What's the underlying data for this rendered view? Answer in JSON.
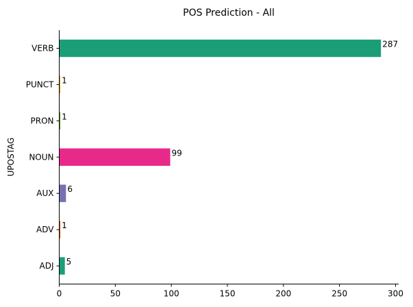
{
  "chart_data": {
    "type": "bar",
    "orientation": "horizontal",
    "title": "POS Prediction - All",
    "xlabel": "",
    "ylabel": "UPOSTAG",
    "categories": [
      "ADJ",
      "ADV",
      "AUX",
      "NOUN",
      "PRON",
      "PUNCT",
      "VERB"
    ],
    "values": [
      5,
      1,
      6,
      99,
      1,
      1,
      287
    ],
    "bar_colors": [
      "#1b9e77",
      "#d95f02",
      "#7570b3",
      "#e7298a",
      "#66a61e",
      "#e6ab02",
      "#1b9e77"
    ],
    "data_labels": [
      "5",
      "1",
      "6",
      "99",
      "1",
      "1",
      "287"
    ],
    "xlim": [
      0,
      300
    ],
    "xticks": [
      0,
      50,
      100,
      150,
      200,
      250,
      300
    ],
    "xtick_labels": [
      "0",
      "50",
      "100",
      "150",
      "200",
      "250",
      "300"
    ],
    "grid": false,
    "legend": "none"
  }
}
